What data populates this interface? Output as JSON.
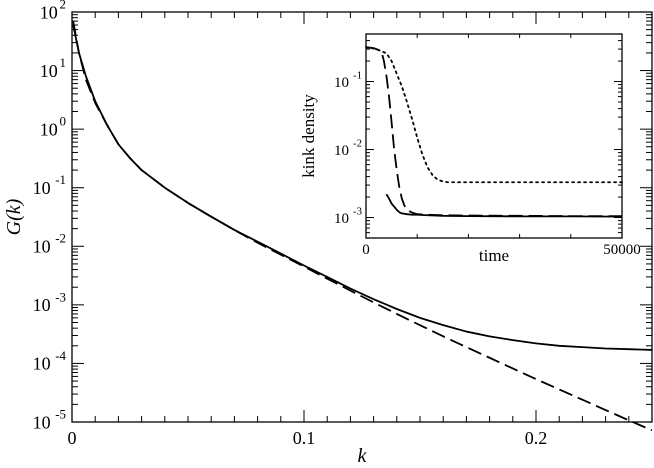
{
  "chart_data": [
    {
      "type": "line",
      "xlabel": "k",
      "ylabel": "G(k)",
      "xlim": [
        0,
        0.25
      ],
      "ylim": [
        1e-05,
        100
      ],
      "yscale": "log",
      "grid": false,
      "xticks": [
        {
          "value": 0,
          "label": "0"
        },
        {
          "value": 0.1,
          "label": "0.1"
        },
        {
          "value": 0.2,
          "label": "0.2"
        }
      ],
      "yticks": [
        {
          "value": 100,
          "mant": "10",
          "exp": "2"
        },
        {
          "value": 10,
          "mant": "10",
          "exp": "1"
        },
        {
          "value": 1,
          "mant": "10",
          "exp": "0"
        },
        {
          "value": 0.1,
          "mant": "10",
          "exp": "-1"
        },
        {
          "value": 0.01,
          "mant": "10",
          "exp": "-2"
        },
        {
          "value": 0.001,
          "mant": "10",
          "exp": "-3"
        },
        {
          "value": 0.0001,
          "mant": "10",
          "exp": "-4"
        },
        {
          "value": 1e-05,
          "mant": "10",
          "exp": "-5"
        }
      ],
      "series": [
        {
          "style": "solid",
          "color": "#000000",
          "x": [
            0.0005,
            0.003,
            0.006,
            0.01,
            0.015,
            0.02,
            0.025,
            0.03,
            0.04,
            0.05,
            0.06,
            0.07,
            0.08,
            0.09,
            0.1,
            0.11,
            0.12,
            0.13,
            0.14,
            0.15,
            0.16,
            0.17,
            0.18,
            0.19,
            0.2,
            0.21,
            0.22,
            0.23,
            0.24,
            0.25
          ],
          "y": [
            60,
            20,
            8,
            3,
            1.2,
            0.55,
            0.32,
            0.2,
            0.1,
            0.055,
            0.032,
            0.019,
            0.012,
            0.0075,
            0.0047,
            0.003,
            0.0019,
            0.00125,
            0.00085,
            0.0006,
            0.00045,
            0.00035,
            0.00029,
            0.00025,
            0.00022,
            0.0002,
            0.00019,
            0.00018,
            0.000175,
            0.00017
          ]
        },
        {
          "style": "dashed",
          "color": "#000000",
          "x": [
            0.0005,
            0.003,
            0.006,
            0.01,
            0.015,
            0.02,
            0.025,
            0.03,
            0.04,
            0.05,
            0.06,
            0.07,
            0.08,
            0.09,
            0.1,
            0.11,
            0.12,
            0.13,
            0.14,
            0.15,
            0.16,
            0.17,
            0.18,
            0.19,
            0.2,
            0.21,
            0.22,
            0.23,
            0.24,
            0.25
          ],
          "y": [
            70,
            20,
            7,
            2.8,
            1.2,
            0.55,
            0.32,
            0.2,
            0.1,
            0.055,
            0.032,
            0.019,
            0.0115,
            0.0072,
            0.0045,
            0.0028,
            0.00175,
            0.0011,
            0.0007,
            0.00045,
            0.00029,
            0.00019,
            0.000125,
            8.2e-05,
            5.4e-05,
            3.6e-05,
            2.4e-05,
            1.6e-05,
            1.07e-05,
            7.2e-06
          ]
        }
      ]
    },
    {
      "type": "line",
      "xlabel": "time",
      "ylabel": "kink density",
      "xlim": [
        0,
        50000
      ],
      "ylim": [
        0.0005,
        0.5
      ],
      "yscale": "log",
      "grid": false,
      "xticks": [
        {
          "value": 0,
          "label": "0"
        },
        {
          "value": 50000,
          "label": "50000"
        }
      ],
      "yticks": [
        {
          "value": 0.1,
          "mant": "10",
          "exp": "-1"
        },
        {
          "value": 0.01,
          "mant": "10",
          "exp": "-2"
        },
        {
          "value": 0.001,
          "mant": "10",
          "exp": "-3"
        }
      ],
      "series": [
        {
          "style": "solid",
          "color": "#000000",
          "x": [
            4000,
            4500,
            5000,
            5500,
            6000,
            6500,
            7000,
            8000,
            9000,
            10000,
            12000,
            15000,
            20000,
            30000,
            40000,
            50000
          ],
          "y": [
            0.0022,
            0.0019,
            0.0016,
            0.00145,
            0.0013,
            0.0012,
            0.00115,
            0.00112,
            0.0011,
            0.0011,
            0.00108,
            0.00106,
            0.00105,
            0.00104,
            0.00104,
            0.00103
          ]
        },
        {
          "style": "dashed",
          "color": "#000000",
          "x": [
            0,
            1500,
            3000,
            3500,
            4000,
            4500,
            5000,
            5500,
            6000,
            6500,
            7000,
            7500,
            8000,
            9000,
            10000,
            12000,
            15000,
            20000,
            30000,
            40000,
            50000
          ],
          "y": [
            0.32,
            0.31,
            0.28,
            0.2,
            0.12,
            0.06,
            0.025,
            0.01,
            0.005,
            0.0028,
            0.0019,
            0.0015,
            0.0013,
            0.00118,
            0.00112,
            0.0011,
            0.00108,
            0.00107,
            0.00106,
            0.00105,
            0.00105
          ]
        },
        {
          "style": "dotted",
          "color": "#000000",
          "x": [
            0,
            2000,
            4000,
            5000,
            6000,
            7000,
            8000,
            9000,
            10000,
            11000,
            12000,
            13000,
            14000,
            15000,
            16000,
            17000,
            20000,
            30000,
            40000,
            50000
          ],
          "y": [
            0.32,
            0.3,
            0.26,
            0.2,
            0.13,
            0.085,
            0.05,
            0.028,
            0.015,
            0.0085,
            0.0055,
            0.0042,
            0.0036,
            0.0034,
            0.0033,
            0.0033,
            0.0033,
            0.0033,
            0.0033,
            0.0033
          ]
        }
      ]
    }
  ]
}
